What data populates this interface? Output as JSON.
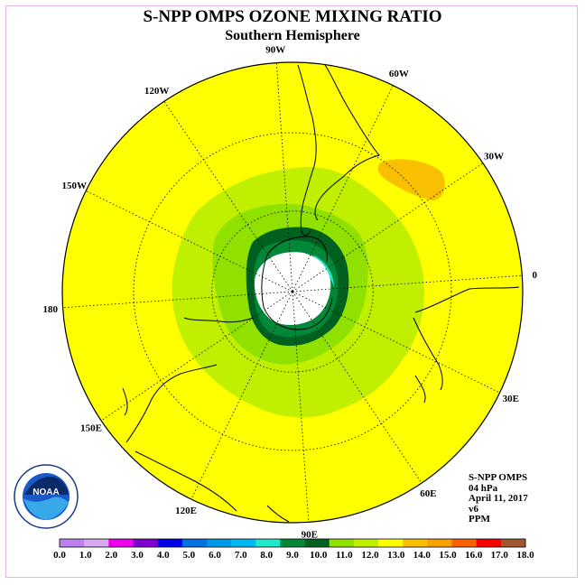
{
  "title": "S-NPP OMPS OZONE MIXING RATIO",
  "subtitle": "Southern Hemisphere",
  "longitude_labels": [
    {
      "text": "90W",
      "lon": -90
    },
    {
      "text": "60W",
      "lon": -60
    },
    {
      "text": "30W",
      "lon": -30
    },
    {
      "text": "0",
      "lon": 0
    },
    {
      "text": "30E",
      "lon": 30
    },
    {
      "text": "60E",
      "lon": 60
    },
    {
      "text": "90E",
      "lon": 90
    },
    {
      "text": "120E",
      "lon": 120
    },
    {
      "text": "150E",
      "lon": 150
    },
    {
      "text": "180",
      "lon": 180
    },
    {
      "text": "150W",
      "lon": -150
    },
    {
      "text": "120W",
      "lon": -120
    }
  ],
  "info": {
    "instrument": "S-NPP OMPS",
    "level": "04 hPa",
    "date": "April 11, 2017",
    "version": "v6",
    "units": "PPM"
  },
  "logo": {
    "text": "NOAA",
    "ring_text": "NATIONAL OCEANIC AND ATMOSPHERIC ADMINISTRATION · U.S. DEPARTMENT OF COMMERCE"
  },
  "colorbar": {
    "labels": [
      "0.0",
      "1.0",
      "2.0",
      "3.0",
      "4.0",
      "5.0",
      "6.0",
      "7.0",
      "8.0",
      "9.0",
      "10.0",
      "11.0",
      "12.0",
      "13.0",
      "14.0",
      "15.0",
      "16.0",
      "17.0",
      "18.0"
    ],
    "colors": [
      "#c080f0",
      "#d8a8f0",
      "#ee00ee",
      "#8000d0",
      "#0000e8",
      "#0070e0",
      "#0098e8",
      "#00b8f0",
      "#20e8c8",
      "#008838",
      "#006020",
      "#90e000",
      "#c0f000",
      "#ffff00",
      "#f8c000",
      "#f8a000",
      "#f86000",
      "#f80000",
      "#a05830"
    ]
  },
  "colors": {
    "background_field": "#ffff00",
    "pole_hole": "#ffffff",
    "land_outline": "#000000"
  }
}
